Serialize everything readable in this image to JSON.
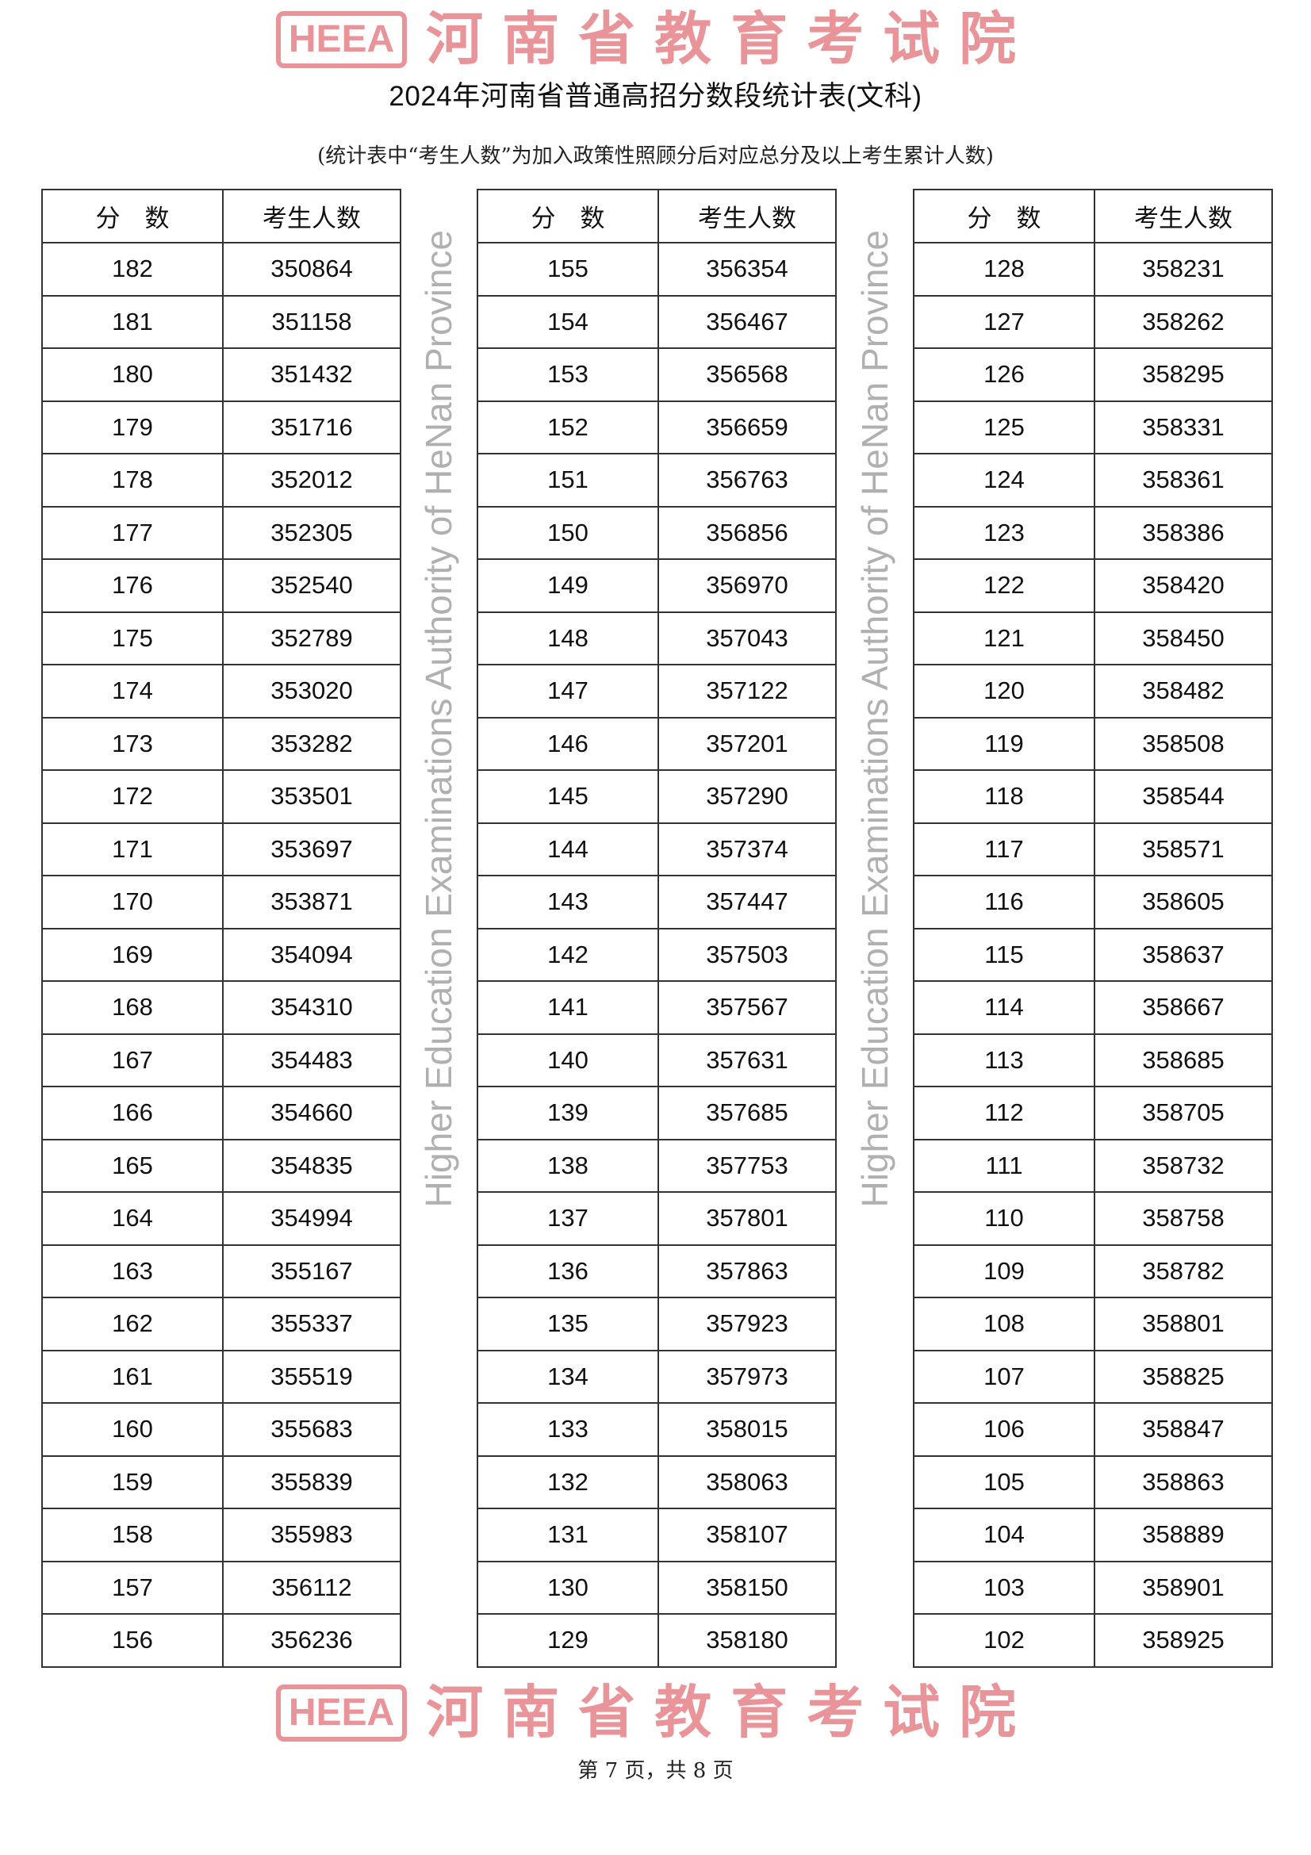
{
  "title": "2024年河南省普通高招分数段统计表(文科)",
  "subtitle": "(统计表中“考生人数”为加入政策性照顾分后对应总分及以上考生累计人数)",
  "headers": {
    "score": "分　数",
    "count": "考生人数"
  },
  "tables": [
    {
      "rows": [
        [
          "182",
          "350864"
        ],
        [
          "181",
          "351158"
        ],
        [
          "180",
          "351432"
        ],
        [
          "179",
          "351716"
        ],
        [
          "178",
          "352012"
        ],
        [
          "177",
          "352305"
        ],
        [
          "176",
          "352540"
        ],
        [
          "175",
          "352789"
        ],
        [
          "174",
          "353020"
        ],
        [
          "173",
          "353282"
        ],
        [
          "172",
          "353501"
        ],
        [
          "171",
          "353697"
        ],
        [
          "170",
          "353871"
        ],
        [
          "169",
          "354094"
        ],
        [
          "168",
          "354310"
        ],
        [
          "167",
          "354483"
        ],
        [
          "166",
          "354660"
        ],
        [
          "165",
          "354835"
        ],
        [
          "164",
          "354994"
        ],
        [
          "163",
          "355167"
        ],
        [
          "162",
          "355337"
        ],
        [
          "161",
          "355519"
        ],
        [
          "160",
          "355683"
        ],
        [
          "159",
          "355839"
        ],
        [
          "158",
          "355983"
        ],
        [
          "157",
          "356112"
        ],
        [
          "156",
          "356236"
        ]
      ]
    },
    {
      "rows": [
        [
          "155",
          "356354"
        ],
        [
          "154",
          "356467"
        ],
        [
          "153",
          "356568"
        ],
        [
          "152",
          "356659"
        ],
        [
          "151",
          "356763"
        ],
        [
          "150",
          "356856"
        ],
        [
          "149",
          "356970"
        ],
        [
          "148",
          "357043"
        ],
        [
          "147",
          "357122"
        ],
        [
          "146",
          "357201"
        ],
        [
          "145",
          "357290"
        ],
        [
          "144",
          "357374"
        ],
        [
          "143",
          "357447"
        ],
        [
          "142",
          "357503"
        ],
        [
          "141",
          "357567"
        ],
        [
          "140",
          "357631"
        ],
        [
          "139",
          "357685"
        ],
        [
          "138",
          "357753"
        ],
        [
          "137",
          "357801"
        ],
        [
          "136",
          "357863"
        ],
        [
          "135",
          "357923"
        ],
        [
          "134",
          "357973"
        ],
        [
          "133",
          "358015"
        ],
        [
          "132",
          "358063"
        ],
        [
          "131",
          "358107"
        ],
        [
          "130",
          "358150"
        ],
        [
          "129",
          "358180"
        ]
      ]
    },
    {
      "rows": [
        [
          "128",
          "358231"
        ],
        [
          "127",
          "358262"
        ],
        [
          "126",
          "358295"
        ],
        [
          "125",
          "358331"
        ],
        [
          "124",
          "358361"
        ],
        [
          "123",
          "358386"
        ],
        [
          "122",
          "358420"
        ],
        [
          "121",
          "358450"
        ],
        [
          "120",
          "358482"
        ],
        [
          "119",
          "358508"
        ],
        [
          "118",
          "358544"
        ],
        [
          "117",
          "358571"
        ],
        [
          "116",
          "358605"
        ],
        [
          "115",
          "358637"
        ],
        [
          "114",
          "358667"
        ],
        [
          "113",
          "358685"
        ],
        [
          "112",
          "358705"
        ],
        [
          "111",
          "358732"
        ],
        [
          "110",
          "358758"
        ],
        [
          "109",
          "358782"
        ],
        [
          "108",
          "358801"
        ],
        [
          "107",
          "358825"
        ],
        [
          "106",
          "358847"
        ],
        [
          "105",
          "358863"
        ],
        [
          "104",
          "358889"
        ],
        [
          "103",
          "358901"
        ],
        [
          "102",
          "358925"
        ]
      ]
    }
  ],
  "footer": "第 7 页，共 8 页",
  "watermark": {
    "logo": "HEEA",
    "cn": "河南省教育考试院",
    "en": "Higher Education Examinations Authority of HeNan Province",
    "color": "#d73c46"
  }
}
